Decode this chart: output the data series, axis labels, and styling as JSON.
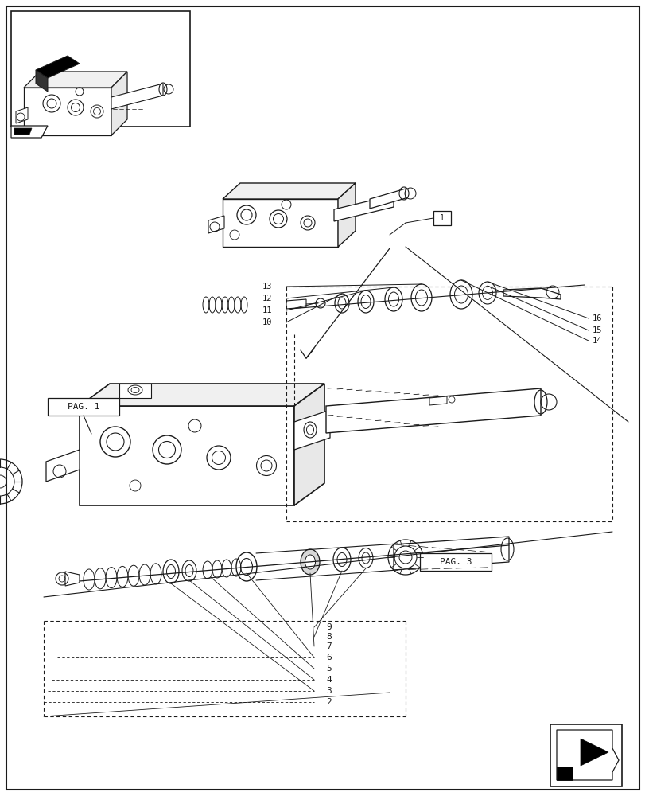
{
  "bg_color": "#ffffff",
  "line_color": "#1a1a1a",
  "fig_width": 8.12,
  "fig_height": 10.0
}
